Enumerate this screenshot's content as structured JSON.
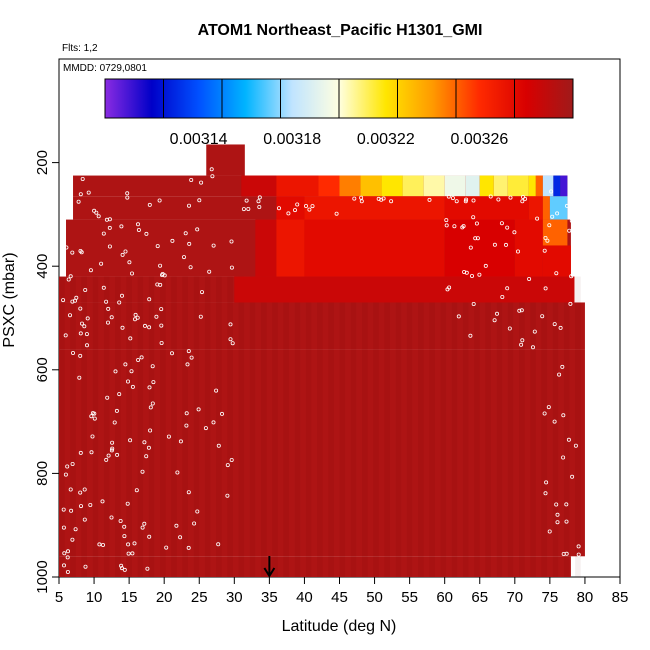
{
  "chart_data": {
    "type": "heatmap",
    "title": "ATOM1 Northeast_Pacific H1301_GMI",
    "subtitle_flights": "Flts: 1,2",
    "annotation_mmdd": "MMDD: 0729,0801",
    "xlabel": "Latitude (deg N)",
    "ylabel": "PSXC (mbar)",
    "xlim": [
      5,
      85
    ],
    "ylim": [
      1000,
      0
    ],
    "y_reversed": true,
    "x_ticks": [
      5,
      10,
      15,
      20,
      25,
      30,
      35,
      40,
      45,
      50,
      55,
      60,
      65,
      70,
      75,
      80,
      85
    ],
    "y_ticks": [
      200,
      400,
      600,
      800,
      1000
    ],
    "grid": false,
    "marker_arrow_latitude": 35,
    "colorbar": {
      "orientation": "horizontal",
      "placement": "top-inside",
      "range": [
        0.0031,
        0.0033
      ],
      "tick_values": [
        0.00314,
        0.00318,
        0.00322,
        0.00326
      ],
      "tick_labels": [
        "0.00314",
        "0.00318",
        "0.00322",
        "0.00326"
      ],
      "colors": [
        "#8a2be2",
        "#0000c8",
        "#0050ff",
        "#00b4ff",
        "#c0e4ff",
        "#ffffe0",
        "#ffe600",
        "#ff9a00",
        "#ff2a00",
        "#d80000",
        "#a01a1a"
      ]
    },
    "fill_value": 0.003295,
    "row_bands": [
      {
        "p_top": 165,
        "p_bot": 225,
        "x_min": 26,
        "x_max": 31.5
      },
      {
        "p_top": 225,
        "p_bot": 265,
        "x_min": 7,
        "x_max": 77.5
      },
      {
        "p_top": 265,
        "p_bot": 310,
        "x_min": 7,
        "x_max": 77.5
      },
      {
        "p_top": 310,
        "p_bot": 420,
        "x_min": 6,
        "x_max": 78
      },
      {
        "p_top": 420,
        "p_bot": 470,
        "x_min": 5,
        "x_max": 78.5
      },
      {
        "p_top": 470,
        "p_bot": 560,
        "x_min": 5,
        "x_max": 80
      },
      {
        "p_top": 560,
        "p_bot": 960,
        "x_min": 5,
        "x_max": 80
      },
      {
        "p_top": 960,
        "p_bot": 1000,
        "x_min": 5,
        "x_max": 78
      }
    ],
    "anomalies": [
      {
        "p_top": 225,
        "p_bot": 265,
        "x_min": 31,
        "x_max": 36,
        "value": 0.003285
      },
      {
        "p_top": 225,
        "p_bot": 265,
        "x_min": 36,
        "x_max": 42,
        "value": 0.00327
      },
      {
        "p_top": 225,
        "p_bot": 265,
        "x_min": 42,
        "x_max": 45,
        "value": 0.00326
      },
      {
        "p_top": 225,
        "p_bot": 265,
        "x_min": 45,
        "x_max": 48,
        "value": 0.003245
      },
      {
        "p_top": 225,
        "p_bot": 265,
        "x_min": 48,
        "x_max": 51,
        "value": 0.00323
      },
      {
        "p_top": 225,
        "p_bot": 265,
        "x_min": 51,
        "x_max": 54,
        "value": 0.00322
      },
      {
        "p_top": 225,
        "p_bot": 265,
        "x_min": 54,
        "x_max": 57,
        "value": 0.003212
      },
      {
        "p_top": 225,
        "p_bot": 265,
        "x_min": 57,
        "x_max": 60,
        "value": 0.003205
      },
      {
        "p_top": 225,
        "p_bot": 265,
        "x_min": 60,
        "x_max": 63,
        "value": 0.003195
      },
      {
        "p_top": 225,
        "p_bot": 265,
        "x_min": 63,
        "x_max": 65,
        "value": 0.00319
      },
      {
        "p_top": 225,
        "p_bot": 265,
        "x_min": 65,
        "x_max": 67,
        "value": 0.00322
      },
      {
        "p_top": 225,
        "p_bot": 265,
        "x_min": 67,
        "x_max": 69,
        "value": 0.00321
      },
      {
        "p_top": 225,
        "p_bot": 265,
        "x_min": 69,
        "x_max": 72,
        "value": 0.003215
      },
      {
        "p_top": 225,
        "p_bot": 265,
        "x_min": 72,
        "x_max": 73,
        "value": 0.00322
      },
      {
        "p_top": 225,
        "p_bot": 265,
        "x_min": 73,
        "x_max": 74,
        "value": 0.00325
      },
      {
        "p_top": 225,
        "p_bot": 265,
        "x_min": 74,
        "x_max": 75.5,
        "value": 0.00318
      },
      {
        "p_top": 225,
        "p_bot": 265,
        "x_min": 75.5,
        "x_max": 76.5,
        "value": 0.00313
      },
      {
        "p_top": 225,
        "p_bot": 265,
        "x_min": 76.5,
        "x_max": 77.5,
        "value": 0.00311
      },
      {
        "p_top": 265,
        "p_bot": 310,
        "x_min": 36,
        "x_max": 40,
        "value": 0.003275
      },
      {
        "p_top": 265,
        "p_bot": 310,
        "x_min": 40,
        "x_max": 45,
        "value": 0.00327
      },
      {
        "p_top": 265,
        "p_bot": 310,
        "x_min": 45,
        "x_max": 60,
        "value": 0.00327
      },
      {
        "p_top": 265,
        "p_bot": 310,
        "x_min": 60,
        "x_max": 72,
        "value": 0.003275
      },
      {
        "p_top": 265,
        "p_bot": 310,
        "x_min": 72,
        "x_max": 74,
        "value": 0.00327
      },
      {
        "p_top": 265,
        "p_bot": 310,
        "x_min": 74,
        "x_max": 75,
        "value": 0.00325
      },
      {
        "p_top": 265,
        "p_bot": 310,
        "x_min": 75,
        "x_max": 77.5,
        "value": 0.00317
      },
      {
        "p_top": 310,
        "p_bot": 420,
        "x_min": 33,
        "x_max": 36,
        "value": 0.003285
      },
      {
        "p_top": 310,
        "p_bot": 420,
        "x_min": 36,
        "x_max": 40,
        "value": 0.00327
      },
      {
        "p_top": 310,
        "p_bot": 420,
        "x_min": 40,
        "x_max": 60,
        "value": 0.003275
      },
      {
        "p_top": 310,
        "p_bot": 420,
        "x_min": 60,
        "x_max": 70,
        "value": 0.00328
      },
      {
        "p_top": 310,
        "p_bot": 420,
        "x_min": 70,
        "x_max": 74,
        "value": 0.003275
      },
      {
        "p_top": 310,
        "p_bot": 360,
        "x_min": 74,
        "x_max": 77.5,
        "value": 0.00325
      },
      {
        "p_top": 360,
        "p_bot": 420,
        "x_min": 74,
        "x_max": 78,
        "value": 0.003275
      },
      {
        "p_top": 420,
        "p_bot": 470,
        "x_min": 30,
        "x_max": 78.5,
        "value": 0.003285
      }
    ],
    "sample_points_count": 280
  }
}
